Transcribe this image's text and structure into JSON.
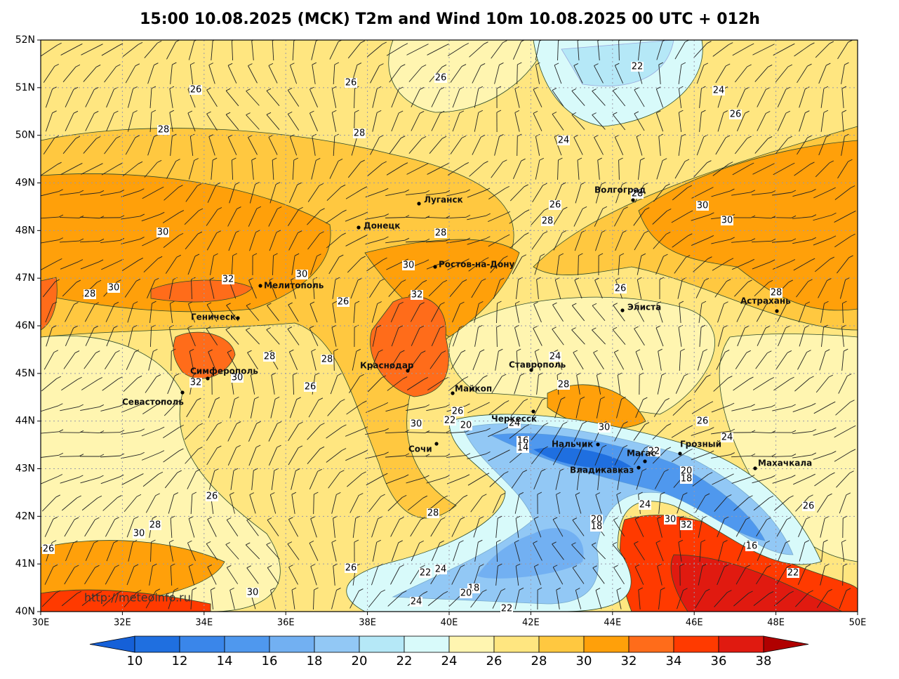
{
  "title": "15:00 10.08.2025 (MCK) T2m and Wind 10m 10.08.2025 00 UTC + 012h",
  "lat_labels": [
    "52N",
    "51N",
    "50N",
    "49N",
    "48N",
    "47N",
    "46N",
    "45N",
    "44N",
    "43N",
    "42N",
    "41N",
    "40N"
  ],
  "lon_labels": [
    "30E",
    "32E",
    "34E",
    "36E",
    "38E",
    "40E",
    "42E",
    "44E",
    "46E",
    "48E",
    "50E"
  ],
  "cities": [
    "Волгоград",
    "Луганск",
    "Донецк",
    "Ростов-на-Дону",
    "Мелитополь",
    "Геническ",
    "Симферополь",
    "Севастополь",
    "Краснодар",
    "Майкоп",
    "Сочи",
    "Черкесск",
    "Ставрополь",
    "Нальчик",
    "Магас",
    "Владикавказ",
    "Грозный",
    "Махачкала",
    "Элиста",
    "Астрахань"
  ],
  "contour_labels": [
    26,
    26,
    26,
    22,
    24,
    26,
    28,
    28,
    24,
    26,
    28,
    28,
    28,
    30,
    30,
    30,
    30,
    30,
    32,
    30,
    28,
    32,
    26,
    26,
    28,
    24,
    28,
    28,
    30,
    32,
    26,
    28,
    26,
    22,
    20,
    24,
    30,
    30,
    26,
    24,
    16,
    14,
    22,
    20,
    18,
    26,
    26,
    28,
    30,
    28,
    20,
    18,
    32,
    30,
    16,
    24,
    26,
    26,
    22,
    24,
    18,
    20,
    30,
    22,
    24,
    22
  ],
  "colorbar_labels": [
    10,
    12,
    14,
    16,
    18,
    20,
    22,
    24,
    26,
    28,
    30,
    32,
    34,
    36,
    38
  ],
  "watermark": "http://meteoinfo.ru"
}
